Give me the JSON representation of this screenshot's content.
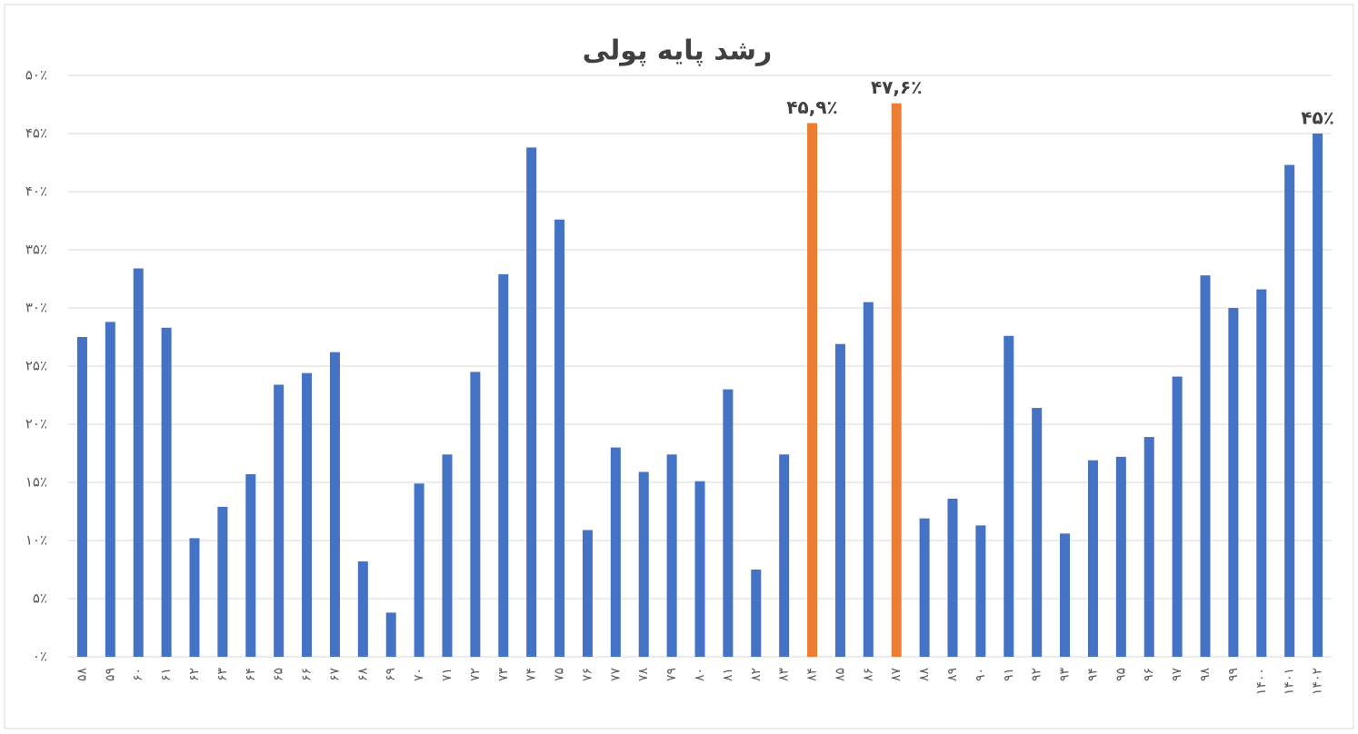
{
  "chart_data": {
    "type": "bar",
    "title": "رشد پایه پولی",
    "categories": [
      "۵۸",
      "۵۹",
      "۶۰",
      "۶۱",
      "۶۲",
      "۶۳",
      "۶۴",
      "۶۵",
      "۶۶",
      "۶۷",
      "۶۸",
      "۶۹",
      "۷۰",
      "۷۱",
      "۷۲",
      "۷۳",
      "۷۴",
      "۷۵",
      "۷۶",
      "۷۷",
      "۷۸",
      "۷۹",
      "۸۰",
      "۸۱",
      "۸۲",
      "۸۳",
      "۸۴",
      "۸۵",
      "۸۶",
      "۸۷",
      "۸۸",
      "۸۹",
      "۹۰",
      "۹۱",
      "۹۲",
      "۹۳",
      "۹۴",
      "۹۵",
      "۹۶",
      "۹۷",
      "۹۸",
      "۹۹",
      "۱۴۰۰",
      "۱۴۰۱",
      "۱۴۰۲"
    ],
    "values": [
      27.5,
      28.8,
      33.4,
      28.3,
      10.2,
      12.9,
      15.7,
      23.4,
      24.4,
      26.2,
      8.2,
      3.8,
      14.9,
      17.4,
      24.5,
      32.9,
      43.8,
      37.6,
      10.9,
      18.0,
      15.9,
      17.4,
      15.1,
      23.0,
      7.5,
      17.4,
      45.9,
      26.9,
      30.5,
      47.6,
      11.9,
      13.6,
      11.3,
      27.6,
      21.4,
      10.6,
      16.9,
      17.2,
      18.9,
      24.1,
      32.8,
      30.0,
      31.6,
      42.3,
      45
    ],
    "value_labels": [
      null,
      null,
      null,
      null,
      null,
      null,
      null,
      null,
      null,
      null,
      null,
      null,
      null,
      null,
      null,
      null,
      null,
      null,
      null,
      null,
      null,
      null,
      null,
      null,
      null,
      null,
      "۴۵,۹٪",
      null,
      null,
      "۴۷,۶٪",
      null,
      null,
      null,
      null,
      null,
      null,
      null,
      null,
      null,
      null,
      null,
      null,
      null,
      null,
      "۴۵٪"
    ],
    "colors": [
      "#4472c4",
      "#4472c4",
      "#4472c4",
      "#4472c4",
      "#4472c4",
      "#4472c4",
      "#4472c4",
      "#4472c4",
      "#4472c4",
      "#4472c4",
      "#4472c4",
      "#4472c4",
      "#4472c4",
      "#4472c4",
      "#4472c4",
      "#4472c4",
      "#4472c4",
      "#4472c4",
      "#4472c4",
      "#4472c4",
      "#4472c4",
      "#4472c4",
      "#4472c4",
      "#4472c4",
      "#4472c4",
      "#4472c4",
      "#ed7d31",
      "#4472c4",
      "#4472c4",
      "#ed7d31",
      "#4472c4",
      "#4472c4",
      "#4472c4",
      "#4472c4",
      "#4472c4",
      "#4472c4",
      "#4472c4",
      "#4472c4",
      "#4472c4",
      "#4472c4",
      "#4472c4",
      "#4472c4",
      "#4472c4",
      "#4472c4",
      "#4472c4"
    ],
    "ylim": [
      0,
      50
    ],
    "yticks": [
      {
        "value": 0,
        "label": "۰٪"
      },
      {
        "value": 5,
        "label": "۵٪"
      },
      {
        "value": 10,
        "label": "۱۰٪"
      },
      {
        "value": 15,
        "label": "۱۵٪"
      },
      {
        "value": 20,
        "label": "۲۰٪"
      },
      {
        "value": 25,
        "label": "۲۵٪"
      },
      {
        "value": 30,
        "label": "۳۰٪"
      },
      {
        "value": 35,
        "label": "۳۵٪"
      },
      {
        "value": 40,
        "label": "۴۰٪"
      },
      {
        "value": 45,
        "label": "۴۵٪"
      },
      {
        "value": 50,
        "label": "۵۰٪"
      }
    ],
    "grid": true
  }
}
